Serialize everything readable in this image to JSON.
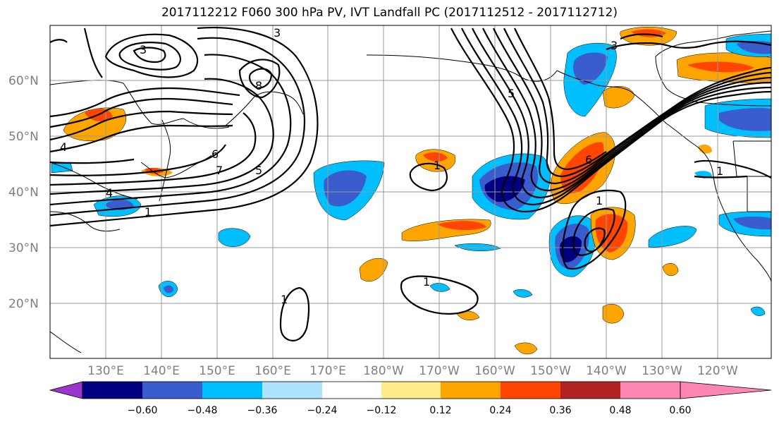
{
  "title": "2017112212 F060 300 hPa PV, IVT Landfall PC (2017112512 - 2017112712)",
  "lat_labels": [
    "60°N",
    "50°N",
    "40°N",
    "30°N",
    "20°N"
  ],
  "lon_labels": [
    "130°E",
    "140°E",
    "150°E",
    "160°E",
    "170°E",
    "180°W",
    "170°W",
    "160°W",
    "150°W",
    "140°W",
    "130°W",
    "120°W"
  ],
  "colorbar": {
    "colors": [
      "#9a36cc",
      "#000080",
      "#3a5ccc",
      "#00bfff",
      "#aee3ff",
      "#ffffff",
      "#ffec8b",
      "#ffa500",
      "#ff4500",
      "#b22222",
      "#ff85b3"
    ],
    "tick_labels": [
      "−0.60",
      "−0.48",
      "−0.36",
      "−0.24",
      "−0.12",
      "0.12",
      "0.24",
      "0.36",
      "0.48",
      "0.60"
    ]
  },
  "contour_labels": [
    "3",
    "4",
    "5",
    "6",
    "7",
    "8",
    "1",
    "3",
    "4",
    "3",
    "5",
    "6",
    "1",
    "1",
    "1",
    "1",
    "1"
  ]
}
